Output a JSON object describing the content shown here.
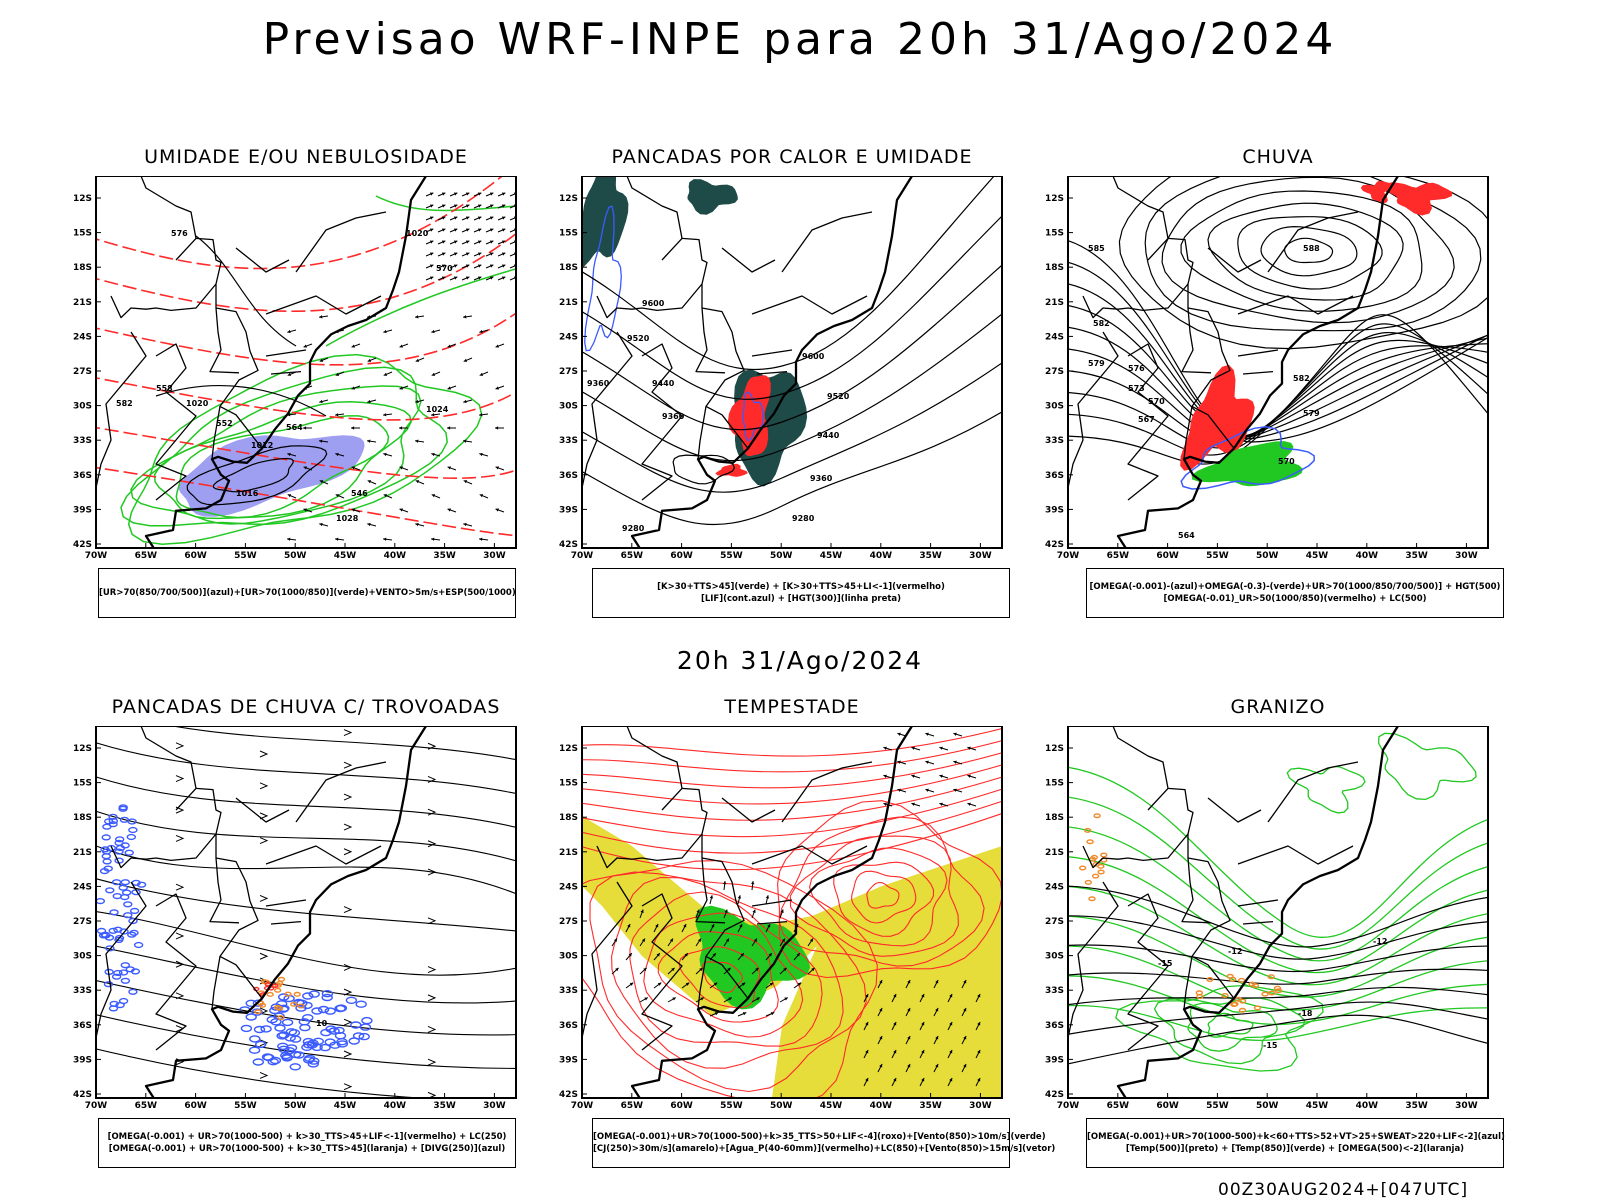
{
  "title": "Previsao WRF-INPE  para 20h 31/Ago/2024",
  "subtitle": "20h 31/Ago/2024",
  "footer": "00Z30AUG2024+[047UTC]",
  "axes": {
    "lat_labels": [
      "12S",
      "15S",
      "18S",
      "21S",
      "24S",
      "27S",
      "30S",
      "33S",
      "36S",
      "39S",
      "42S"
    ],
    "lon_labels": [
      "70W",
      "65W",
      "60W",
      "55W",
      "50W",
      "45W",
      "40W",
      "35W",
      "30W"
    ]
  },
  "colors": {
    "blue": "#3b5bff",
    "green": "#22c822",
    "red": "#ff2a2a",
    "orange": "#f08a2a",
    "yellow": "#e6dc3a",
    "darkteal": "#1e4a48",
    "lavender": "#8e8ef0"
  },
  "panels": [
    {
      "id": "umidade",
      "title": "UMIDADE E/OU NEBULOSIDADE",
      "legend": [
        "[UR>70(850/700/500)](azul)+[UR>70(1000/850)](verde)+VENTO>5m/s+ESP(500/1000)"
      ],
      "contour_labels": [
        "1012",
        "1016",
        "1020",
        "1020",
        "1024",
        "1028",
        "570",
        "576",
        "558",
        "552",
        "564",
        "546",
        "582"
      ]
    },
    {
      "id": "pancadas-calor",
      "title": "PANCADAS POR CALOR E UMIDADE",
      "legend": [
        "[K>30+TTS>45](verde) + [K>30+TTS>45+LI<-1](vermelho)",
        "[LIF](cont.azul) + [HGT(300)](linha preta)"
      ],
      "contour_labels": [
        "9600",
        "9520",
        "9440",
        "9360",
        "9600",
        "9520",
        "9440",
        "9360",
        "9280",
        "9280",
        "9360"
      ]
    },
    {
      "id": "chuva",
      "title": "CHUVA",
      "legend": [
        "[OMEGA(-0.001)-(azul)+OMEGA(-0.3)-(verde)+UR>70(1000/850/700/500)] + HGT(500)",
        "[OMEGA(-0.01)_UR>50(1000/850)(vermelho) + LC(500)"
      ],
      "contour_labels": [
        "588",
        "585",
        "582",
        "579",
        "576",
        "573",
        "570",
        "567",
        "564",
        "582",
        "579",
        "570"
      ]
    },
    {
      "id": "pancadas-trovoadas",
      "title": "PANCADAS DE CHUVA C/ TROVOADAS",
      "legend": [
        "[OMEGA(-0.001) + UR>70(1000-500) + k>30_TTS>45+LIF<-1](vermelho) + LC(250)",
        "[OMEGA(-0.001) + UR>70(1000-500) + k>30_TTS>45](laranja) + [DIVG(250)](azul)"
      ],
      "contour_labels": [
        "10"
      ]
    },
    {
      "id": "tempestade",
      "title": "TEMPESTADE",
      "legend": [
        "[OMEGA(-0.001)+UR>70(1000-500)+k>35_TTS>50+LIF<-4](roxo)+[Vento(850)>10m/s](verde)",
        "[CJ(250)>30m/s](amarelo)+[Agua_P(40-60mm)](vermelho)+LC(850)+[Vento(850)>15m/s](vetor)"
      ],
      "contour_labels": []
    },
    {
      "id": "granizo",
      "title": "GRANIZO",
      "legend": [
        "[OMEGA(-0.001)+UR>70(1000-500)+k<60+TTS>52+VT>25+SWEAT>220+LIF<-2](azul)",
        "[Temp(500)](preto) + [Temp(850)](verde) + [OMEGA(500)<-2](laranja)"
      ],
      "contour_labels": [
        "-12",
        "-12",
        "-15",
        "-15",
        "-18"
      ]
    }
  ]
}
